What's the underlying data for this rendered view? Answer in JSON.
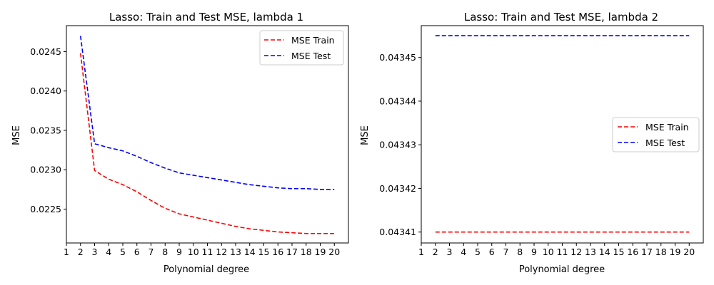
{
  "chart_data": [
    {
      "type": "line",
      "title": "Lasso: Train and Test MSE, lambda 1",
      "xlabel": "Polynomial degree",
      "ylabel": "MSE",
      "xlim": [
        1,
        21
      ],
      "ylim": [
        0.02207,
        0.02483
      ],
      "xticks": [
        1,
        2,
        3,
        4,
        5,
        6,
        7,
        8,
        9,
        10,
        11,
        12,
        13,
        14,
        15,
        16,
        17,
        18,
        19,
        20
      ],
      "yticks": [
        0.0225,
        0.023,
        0.0235,
        0.024,
        0.0245
      ],
      "ytick_labels": [
        "0.0225",
        "0.0230",
        "0.0235",
        "0.0240",
        "0.0245"
      ],
      "legend_position": "upper right",
      "x": [
        2,
        3,
        4,
        5,
        6,
        7,
        8,
        9,
        10,
        11,
        12,
        13,
        14,
        15,
        16,
        17,
        18,
        19,
        20
      ],
      "series": [
        {
          "name": "MSE Train",
          "color": "#ff0000",
          "style": "dashed",
          "values": [
            0.02448,
            0.02299,
            0.02288,
            0.02281,
            0.02272,
            0.02261,
            0.02251,
            0.02244,
            0.0224,
            0.02236,
            0.02232,
            0.02228,
            0.02225,
            0.02223,
            0.02221,
            0.0222,
            0.02219,
            0.02219,
            0.02219
          ]
        },
        {
          "name": "MSE Test",
          "color": "#0000ff",
          "style": "dashed",
          "values": [
            0.0247,
            0.02333,
            0.02328,
            0.02324,
            0.02317,
            0.02309,
            0.02302,
            0.02296,
            0.02293,
            0.0229,
            0.02287,
            0.02284,
            0.02281,
            0.02279,
            0.02277,
            0.02276,
            0.02276,
            0.02275,
            0.02275
          ]
        }
      ]
    },
    {
      "type": "line",
      "title": "Lasso: Train and Test MSE, lambda 2",
      "xlabel": "Polynomial degree",
      "ylabel": "MSE",
      "xlim": [
        1,
        21
      ],
      "ylim": [
        0.0434075,
        0.0434573
      ],
      "xticks": [
        1,
        2,
        3,
        4,
        5,
        6,
        7,
        8,
        9,
        10,
        11,
        12,
        13,
        14,
        15,
        16,
        17,
        18,
        19,
        20
      ],
      "yticks": [
        0.04341,
        0.04342,
        0.04343,
        0.04344,
        0.04345
      ],
      "ytick_labels": [
        "0.04341",
        "0.04342",
        "0.04343",
        "0.04344",
        "0.04345"
      ],
      "legend_position": "center right",
      "x": [
        2,
        3,
        4,
        5,
        6,
        7,
        8,
        9,
        10,
        11,
        12,
        13,
        14,
        15,
        16,
        17,
        18,
        19,
        20
      ],
      "series": [
        {
          "name": "MSE Train",
          "color": "#ff0000",
          "style": "dashed",
          "values": [
            0.04341,
            0.04341,
            0.04341,
            0.04341,
            0.04341,
            0.04341,
            0.04341,
            0.04341,
            0.04341,
            0.04341,
            0.04341,
            0.04341,
            0.04341,
            0.04341,
            0.04341,
            0.04341,
            0.04341,
            0.04341,
            0.04341
          ]
        },
        {
          "name": "MSE Test",
          "color": "#0000ff",
          "style": "dashed",
          "values": [
            0.043455,
            0.043455,
            0.043455,
            0.043455,
            0.043455,
            0.043455,
            0.043455,
            0.043455,
            0.043455,
            0.043455,
            0.043455,
            0.043455,
            0.043455,
            0.043455,
            0.043455,
            0.043455,
            0.043455,
            0.043455,
            0.043455
          ]
        }
      ]
    }
  ]
}
